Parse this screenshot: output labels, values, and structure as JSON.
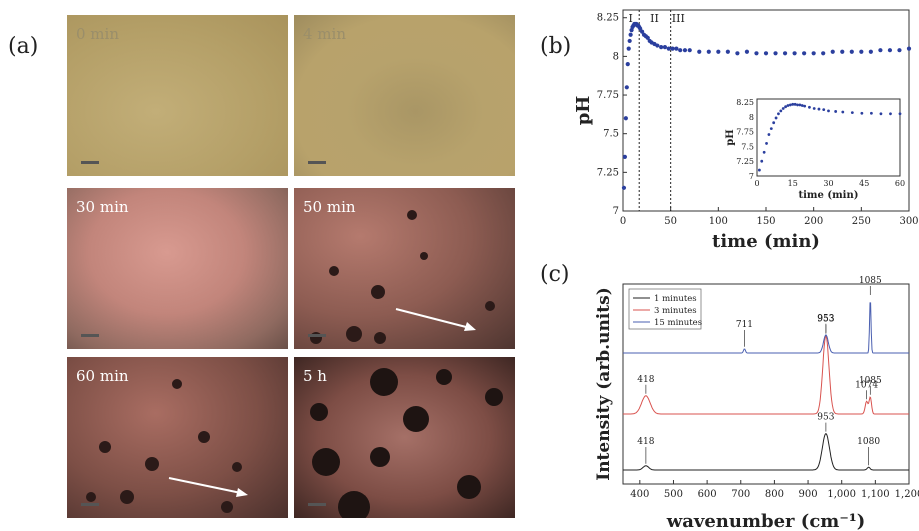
{
  "panel_labels": {
    "a": "(a)",
    "b": "(b)",
    "c": "(c)"
  },
  "micrographs": [
    {
      "label": "0 min",
      "kind": "yellow"
    },
    {
      "label": "4 min",
      "kind": "yellow"
    },
    {
      "label": "30 min",
      "kind": "pink"
    },
    {
      "label": "50 min",
      "kind": "dark"
    },
    {
      "label": "60 min",
      "kind": "dark"
    },
    {
      "label": "5 h",
      "kind": "darker"
    }
  ],
  "colors": {
    "ph_series": "#2b3f9e",
    "blue": "#4a5fb0",
    "red": "#d9534f",
    "black": "#222222"
  },
  "chart_data": [
    {
      "type": "scatter",
      "title": "",
      "xlabel": "time (min)",
      "ylabel": "pH",
      "xlim": [
        0,
        300
      ],
      "ylim": [
        7,
        8.3
      ],
      "xticks": [
        0,
        50,
        100,
        150,
        200,
        250,
        300
      ],
      "yticks": [
        7,
        7.25,
        7.5,
        7.75,
        8,
        8.25
      ],
      "ytick_labels": [
        "7",
        "7.25",
        "7.5",
        "7.75",
        "8",
        "8.25"
      ],
      "regions": [
        "I",
        "II",
        "III"
      ],
      "vlines": [
        17,
        50
      ],
      "series": [
        {
          "x": [
            1,
            2,
            3,
            4,
            5,
            6,
            7,
            8,
            9,
            10,
            11,
            12,
            13,
            14,
            15,
            16,
            17,
            18,
            20,
            22,
            24,
            26,
            28,
            30,
            33,
            36,
            40,
            44,
            48,
            52,
            56,
            60,
            65,
            70,
            80,
            90,
            100,
            110,
            120,
            130,
            140,
            150,
            160,
            170,
            180,
            190,
            200,
            210,
            220,
            230,
            240,
            250,
            260,
            270,
            280,
            290,
            300
          ],
          "y": [
            7.15,
            7.35,
            7.6,
            7.8,
            7.95,
            8.05,
            8.1,
            8.14,
            8.17,
            8.19,
            8.2,
            8.21,
            8.21,
            8.21,
            8.2,
            8.2,
            8.19,
            8.18,
            8.16,
            8.14,
            8.13,
            8.12,
            8.1,
            8.09,
            8.08,
            8.07,
            8.06,
            8.06,
            8.05,
            8.05,
            8.05,
            8.04,
            8.04,
            8.04,
            8.03,
            8.03,
            8.03,
            8.03,
            8.02,
            8.03,
            8.02,
            8.02,
            8.02,
            8.02,
            8.02,
            8.02,
            8.02,
            8.02,
            8.03,
            8.03,
            8.03,
            8.03,
            8.03,
            8.04,
            8.04,
            8.04,
            8.05
          ]
        }
      ],
      "inset": {
        "xlabel": "time (min)",
        "ylabel": "pH",
        "xlim": [
          0,
          60
        ],
        "ylim": [
          7,
          8.3
        ],
        "xticks": [
          0,
          15,
          30,
          45,
          60
        ],
        "yticks": [
          7,
          7.25,
          7.5,
          7.75,
          8,
          8.25
        ],
        "ytick_labels": [
          "7",
          "7.25",
          "7.5",
          "7.75",
          "8",
          "8.25"
        ],
        "x": [
          1,
          2,
          3,
          4,
          5,
          6,
          7,
          8,
          9,
          10,
          11,
          12,
          13,
          14,
          15,
          16,
          17,
          18,
          19,
          20,
          22,
          24,
          26,
          28,
          30,
          33,
          36,
          40,
          44,
          48,
          52,
          56,
          60
        ],
        "y": [
          7.1,
          7.25,
          7.4,
          7.55,
          7.7,
          7.8,
          7.9,
          7.98,
          8.05,
          8.1,
          8.14,
          8.17,
          8.19,
          8.2,
          8.21,
          8.21,
          8.2,
          8.2,
          8.19,
          8.18,
          8.16,
          8.14,
          8.13,
          8.12,
          8.1,
          8.09,
          8.08,
          8.07,
          8.06,
          8.06,
          8.05,
          8.05,
          8.05
        ]
      }
    },
    {
      "type": "line",
      "title": "",
      "xlabel": "wavenumber (cm⁻¹)",
      "ylabel": "Intensity (arb.units)",
      "xlim": [
        350,
        1200
      ],
      "xticks": [
        400,
        500,
        600,
        700,
        800,
        900,
        1000,
        1100,
        1200
      ],
      "xtick_labels": [
        "400",
        "500",
        "600",
        "700",
        "800",
        "900",
        "1,000",
        "1,100",
        "1,200"
      ],
      "legend_position": "top-left",
      "series": [
        {
          "name": "1 minutes",
          "color": "#222222",
          "baseline": 0.0,
          "peaks": [
            {
              "x": 418,
              "h": 0.03,
              "w": 12
            },
            {
              "x": 953,
              "h": 0.26,
              "w": 15
            },
            {
              "x": 1080,
              "h": 0.02,
              "w": 6
            }
          ]
        },
        {
          "name": "3 minutes",
          "color": "#d9534f",
          "baseline": 0.52,
          "peaks": [
            {
              "x": 418,
              "h": 0.13,
              "w": 18
            },
            {
              "x": 953,
              "h": 0.56,
              "w": 13
            },
            {
              "x": 1074,
              "h": 0.09,
              "w": 6
            },
            {
              "x": 1085,
              "h": 0.12,
              "w": 5
            }
          ]
        },
        {
          "name": "15 minutes",
          "color": "#4a5fb0",
          "baseline": 1.23,
          "peaks": [
            {
              "x": 711,
              "h": 0.03,
              "w": 4
            },
            {
              "x": 953,
              "h": 0.13,
              "w": 10
            },
            {
              "x": 1085,
              "h": 0.4,
              "w": 3
            }
          ]
        }
      ],
      "annotations": [
        {
          "text": "418",
          "x": 418,
          "series": 0
        },
        {
          "text": "953",
          "x": 953,
          "series": 0
        },
        {
          "text": "1080",
          "x": 1080,
          "series": 0
        },
        {
          "text": "418",
          "x": 418,
          "series": 1
        },
        {
          "text": "953",
          "x": 953,
          "series": 1
        },
        {
          "text": "1074",
          "x": 1074,
          "series": 1
        },
        {
          "text": "1085",
          "x": 1085,
          "series": 1
        },
        {
          "text": "711",
          "x": 711,
          "series": 2
        },
        {
          "text": "953",
          "x": 953,
          "series": 2
        },
        {
          "text": "1085",
          "x": 1085,
          "series": 2
        }
      ]
    }
  ]
}
